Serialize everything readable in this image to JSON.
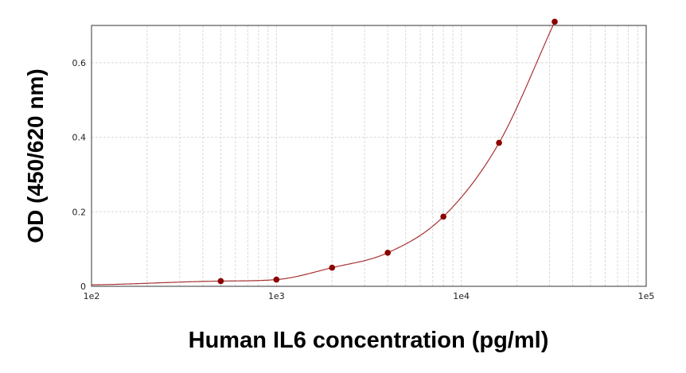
{
  "chart_data": {
    "type": "scatter",
    "title": "",
    "xlabel": "Human IL6 concentration (pg/ml)",
    "ylabel": "OD (450/620 nm)",
    "x_scale": "log",
    "xlim": [
      100,
      100000
    ],
    "ylim": [
      0,
      0.7
    ],
    "x_ticks": [
      100,
      1000,
      10000,
      100000
    ],
    "x_tick_labels": [
      "1e2",
      "1e3",
      "1e4",
      "1e5"
    ],
    "y_ticks": [
      0,
      0.2,
      0.4,
      0.6
    ],
    "y_tick_labels": [
      "0",
      "0.2",
      "0.4",
      "0.6"
    ],
    "grid": true,
    "legend": "none",
    "series": [
      {
        "points": [
          {
            "x": 500,
            "y": 0.014
          },
          {
            "x": 1000,
            "y": 0.018
          },
          {
            "x": 2000,
            "y": 0.05
          },
          {
            "x": 4000,
            "y": 0.09
          },
          {
            "x": 8000,
            "y": 0.187
          },
          {
            "x": 16000,
            "y": 0.385
          },
          {
            "x": 32000,
            "y": 0.71
          }
        ],
        "fit": "smooth curve",
        "marker_color": "#8b0000",
        "line_color": "#a83232"
      }
    ]
  }
}
